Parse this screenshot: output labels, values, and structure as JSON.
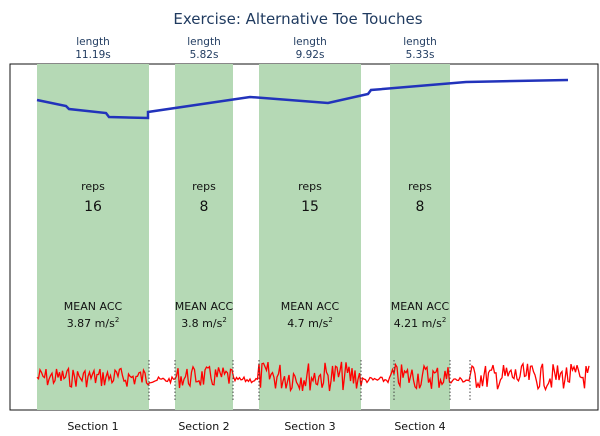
{
  "chart_data": {
    "type": "line",
    "title": "Exercise: Alternative Toe Touches",
    "length_label": "length",
    "reps_label": "reps",
    "acc_label": "MEAN ACC",
    "acc_unit": "m/s",
    "acc_unit_power": "2",
    "sections": [
      {
        "label": "Section 1",
        "length": "11.19s",
        "reps": "16",
        "mean_acc": "3.87"
      },
      {
        "label": "Section 2",
        "length": "5.82s",
        "reps": "8",
        "mean_acc": "3.8"
      },
      {
        "label": "Section 3",
        "length": "9.92s",
        "reps": "15",
        "mean_acc": "4.7"
      },
      {
        "label": "Section 4",
        "length": "5.33s",
        "reps": "8",
        "mean_acc": "4.21"
      }
    ],
    "colors": {
      "section_fill": "#b5d9b5",
      "progress_line": "#2233bb",
      "acc_signal": "#ff0000",
      "title": "#1f3a5f"
    },
    "grid": false
  }
}
